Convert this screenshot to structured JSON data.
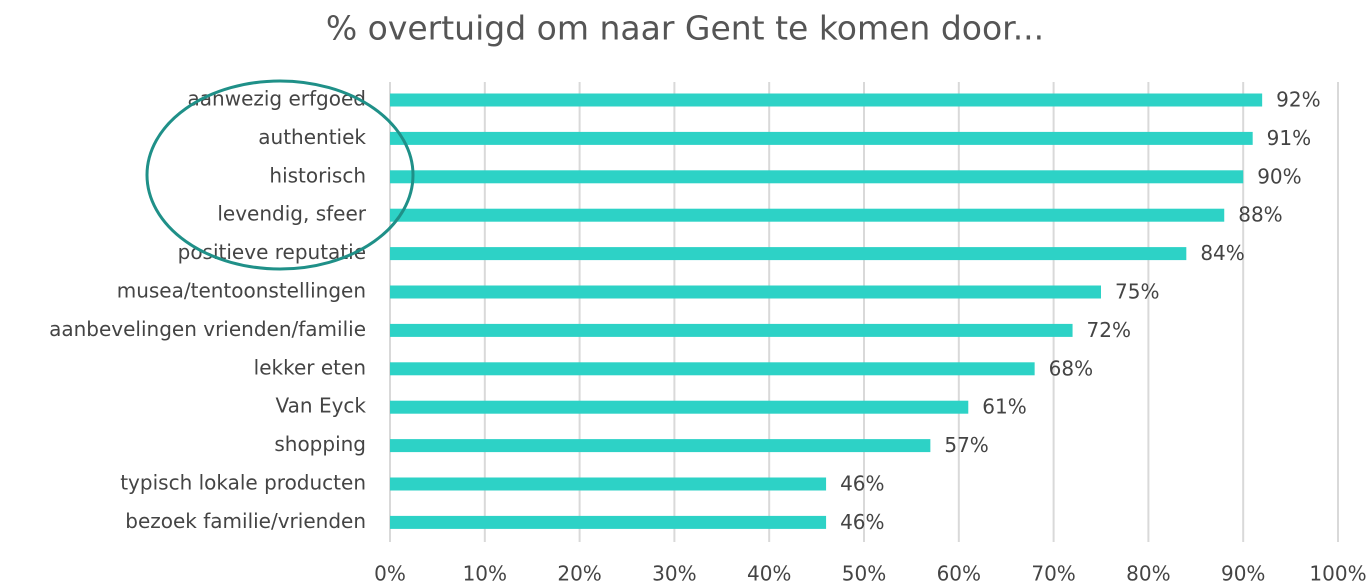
{
  "chart_data": {
    "type": "barh",
    "title": "% overtuigd om naar Gent te komen door...",
    "categories": [
      "aanwezig erfgoed",
      "authentiek",
      "historisch",
      "levendig, sfeer",
      "positieve reputatie",
      "musea/tentoonstellingen",
      "aanbevelingen vrienden/familie",
      "lekker eten",
      "Van Eyck",
      "shopping",
      "typisch lokale producten",
      "bezoek familie/vrienden"
    ],
    "values": [
      92,
      91,
      90,
      88,
      84,
      75,
      72,
      68,
      61,
      57,
      46,
      46
    ],
    "value_labels": [
      "92%",
      "91%",
      "90%",
      "88%",
      "84%",
      "75%",
      "72%",
      "68%",
      "61%",
      "57%",
      "46%",
      "46%"
    ],
    "color": "#2dd2c6",
    "xlim": [
      0,
      100
    ],
    "xticks": [
      {
        "value": 0,
        "label": "0%"
      },
      {
        "value": 10,
        "label": "10%"
      },
      {
        "value": 20,
        "label": "20%"
      },
      {
        "value": 30,
        "label": "30%"
      },
      {
        "value": 40,
        "label": "40%"
      },
      {
        "value": 50,
        "label": "50%"
      },
      {
        "value": 60,
        "label": "60%"
      },
      {
        "value": 70,
        "label": "70%"
      },
      {
        "value": 80,
        "label": "80%"
      },
      {
        "value": 90,
        "label": "90%"
      },
      {
        "value": 100,
        "label": "100%"
      }
    ],
    "grid": true
  }
}
